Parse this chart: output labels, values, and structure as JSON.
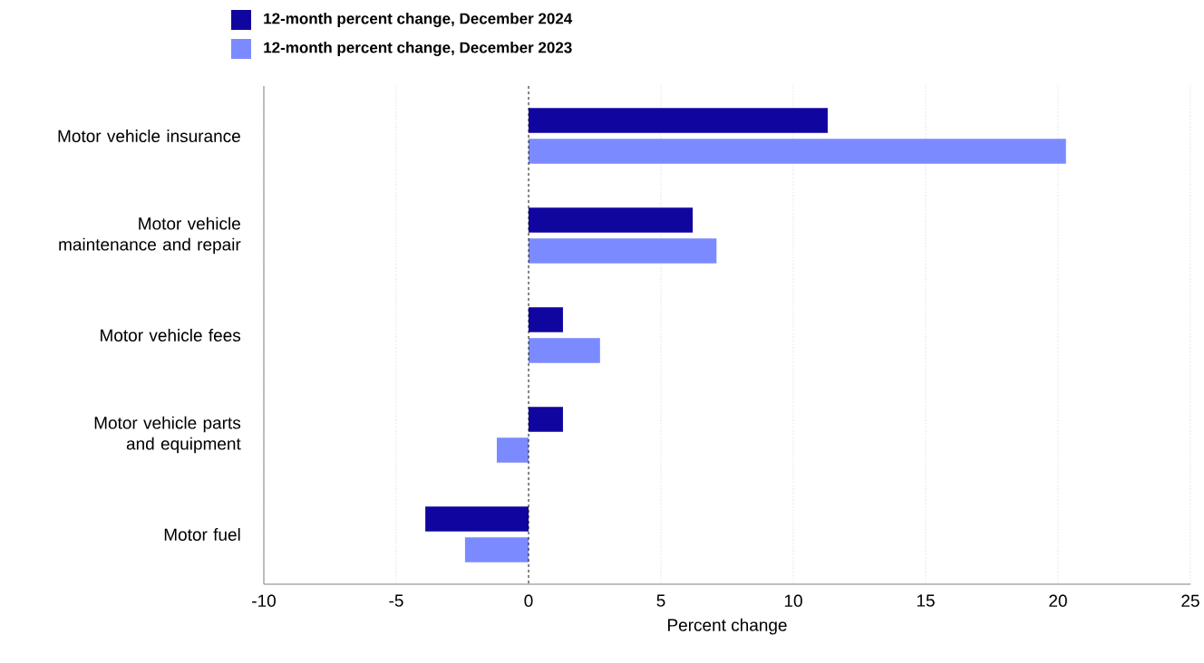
{
  "chart_data": {
    "type": "bar",
    "orientation": "horizontal",
    "categories": [
      "Motor vehicle insurance",
      "Motor vehicle maintenance and repair",
      "Motor vehicle fees",
      "Motor vehicle parts and equipment",
      "Motor fuel"
    ],
    "series": [
      {
        "name": "12-month percent change, December 2024",
        "color": "#10069f",
        "values": [
          11.3,
          6.2,
          1.3,
          1.3,
          -3.9
        ]
      },
      {
        "name": "12-month percent change, December 2023",
        "color": "#7b8bff",
        "values": [
          20.3,
          7.1,
          2.7,
          -1.2,
          -2.4
        ]
      }
    ],
    "xlabel": "Percent change",
    "xlim": [
      -10,
      25
    ],
    "xticks": [
      -10,
      -5,
      0,
      5,
      10,
      15,
      20,
      25
    ],
    "grid": "x",
    "legend": "top",
    "ref_lines": [
      {
        "axis": "x",
        "value": 0,
        "color": "#000000",
        "line_style": "dashed"
      }
    ]
  }
}
